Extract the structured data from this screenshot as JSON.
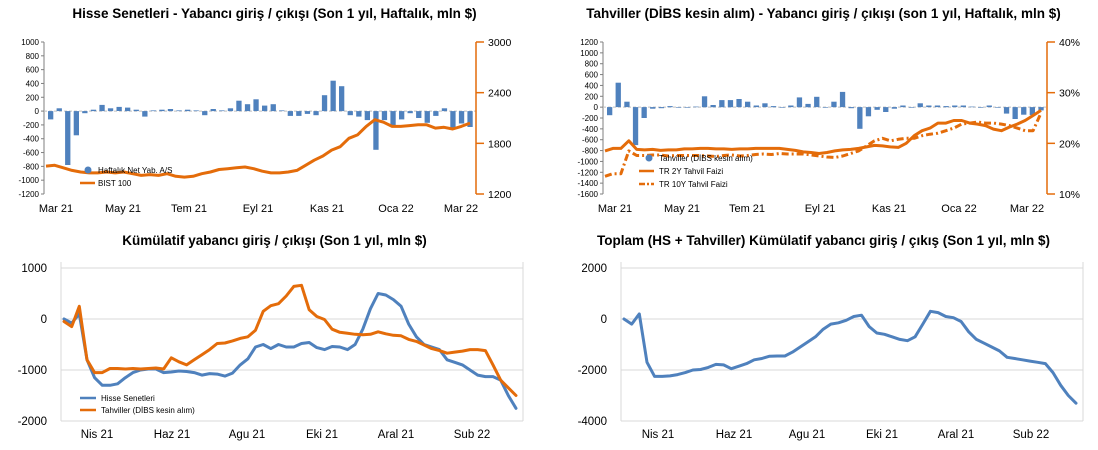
{
  "colors": {
    "blue": "#4f81bd",
    "orange": "#e46c0a",
    "axis": "#7f7f7f",
    "grid": "#d9d9d9"
  },
  "chart_data": [
    {
      "type": "bar+line",
      "title": "Hisse Senetleri - Yabancı giriş / çıkışı (Son 1 yıl, Haftalık, mln $)",
      "x_ticks": [
        "Mar 21",
        "May 21",
        "Tem 21",
        "Eyl 21",
        "Kas 21",
        "Oca 22",
        "Mar 22"
      ],
      "y_left_ticks": [
        "1000",
        "800",
        "600",
        "400",
        "200",
        "0",
        "-200",
        "-400",
        "-600",
        "-800",
        "-1000",
        "-1200"
      ],
      "y_left_range": [
        -1200,
        1000
      ],
      "y_right_ticks": [
        "3000",
        "2400",
        "1800",
        "1200"
      ],
      "y_right_range": [
        1200,
        3000
      ],
      "legend": [
        "Haftalık Net Yab. A/S",
        "BIST 100"
      ],
      "bars": [
        -120,
        40,
        -780,
        -350,
        -30,
        20,
        90,
        40,
        60,
        50,
        20,
        -80,
        10,
        20,
        30,
        10,
        20,
        10,
        -60,
        30,
        10,
        40,
        150,
        100,
        170,
        80,
        100,
        10,
        -70,
        -70,
        -40,
        -60,
        230,
        440,
        360,
        -60,
        -80,
        -130,
        -560,
        -130,
        -220,
        -120,
        -30,
        -100,
        -170,
        -70,
        40,
        -260,
        -180,
        -230
      ],
      "bist100": [
        1530,
        1540,
        1510,
        1480,
        1460,
        1450,
        1450,
        1460,
        1450,
        1460,
        1440,
        1420,
        1430,
        1420,
        1440,
        1410,
        1400,
        1410,
        1440,
        1460,
        1490,
        1500,
        1510,
        1520,
        1500,
        1470,
        1450,
        1450,
        1460,
        1480,
        1540,
        1600,
        1650,
        1720,
        1760,
        1860,
        1900,
        2000,
        2080,
        2050,
        2000,
        2000,
        2010,
        2020,
        2020,
        1980,
        1990,
        1970,
        2000,
        2040
      ]
    },
    {
      "type": "bar+line",
      "title": "Tahviller (DİBS kesin alım) - Yabancı giriş / çıkışı (son 1 yıl, Haftalık, mln $)",
      "x_ticks": [
        "Mar 21",
        "May 21",
        "Tem 21",
        "Eyl 21",
        "Kas 21",
        "Oca 22",
        "Mar 22"
      ],
      "y_left_ticks": [
        "1200",
        "1000",
        "800",
        "600",
        "400",
        "200",
        "0",
        "-200",
        "-400",
        "-600",
        "-800",
        "-1000",
        "-1200",
        "-1400",
        "-1600"
      ],
      "y_left_range": [
        -1600,
        1200
      ],
      "y_right_ticks": [
        "40%",
        "30%",
        "20%",
        "10%"
      ],
      "y_right_range": [
        10,
        40
      ],
      "legend": [
        "Tahviller (DİBS kesin alım)",
        "TR 2Y Tahvil Faizi",
        "TR 10Y Tahvil Faizi"
      ],
      "bars": [
        -150,
        450,
        100,
        -700,
        -200,
        -30,
        -20,
        20,
        -10,
        0,
        10,
        200,
        40,
        130,
        130,
        150,
        100,
        30,
        70,
        20,
        0,
        30,
        180,
        60,
        190,
        0,
        100,
        280,
        -20,
        -400,
        -170,
        -50,
        -90,
        -30,
        30,
        0,
        70,
        30,
        30,
        20,
        30,
        30,
        10,
        0,
        30,
        -10,
        -120,
        -220,
        -140,
        -150,
        -60
      ],
      "tr2y": [
        18.5,
        19,
        19,
        20.5,
        18.8,
        18.7,
        18.8,
        18.6,
        18.7,
        18.7,
        18.9,
        18.9,
        19,
        19,
        18.9,
        18.9,
        18.8,
        18.9,
        18.9,
        19,
        19,
        19,
        19,
        18.8,
        18.6,
        18.3,
        18.2,
        18,
        18.2,
        18.5,
        18.7,
        18.8,
        19,
        19.3,
        19.6,
        19.5,
        19.3,
        19.2,
        20,
        21.5,
        22.5,
        23,
        24,
        24,
        24.5,
        24.5,
        24,
        23.8,
        23.5,
        22.8,
        22.5,
        23.2,
        23.8,
        24.5,
        25.5,
        26.5
      ],
      "tr10y": [
        13.5,
        14,
        14,
        18.5,
        17.6,
        17.6,
        17.7,
        17.7,
        17.5,
        17.6,
        17.6,
        17.6,
        17.6,
        17.5,
        17.4,
        17.6,
        17.7,
        17.5,
        17.6,
        17.8,
        17.9,
        17.8,
        18,
        17.9,
        17.9,
        17.9,
        17.7,
        17.5,
        17.3,
        17.2,
        17.5,
        18,
        18.5,
        19.5,
        20.5,
        21,
        20.5,
        20.8,
        21,
        21,
        21.5,
        21.8,
        22,
        22.5,
        23,
        23.8,
        24,
        24.2,
        24,
        24,
        23.8,
        23.5,
        23,
        22.5,
        22.5,
        26
      ]
    },
    {
      "type": "line",
      "title": "Kümülatif yabancı giriş / çıkışı (Son 1 yıl, mln $)",
      "x_ticks": [
        "Nis 21",
        "Haz 21",
        "Agu 21",
        "Eki 21",
        "Aral 21",
        "Sub 22"
      ],
      "y_ticks": [
        "1000",
        "0",
        "-1000",
        "-2000"
      ],
      "ylim": [
        -2000,
        1000
      ],
      "series": [
        {
          "name": "Hisse Senetleri",
          "values": [
            0,
            -80,
            100,
            -800,
            -1150,
            -1300,
            -1300,
            -1270,
            -1150,
            -1050,
            -1000,
            -980,
            -980,
            -1050,
            -1040,
            -1020,
            -1030,
            -1050,
            -1100,
            -1070,
            -1080,
            -1120,
            -1060,
            -900,
            -780,
            -550,
            -500,
            -580,
            -500,
            -550,
            -550,
            -480,
            -460,
            -560,
            -600,
            -540,
            -550,
            -600,
            -500,
            -200,
            200,
            500,
            470,
            380,
            250,
            -100,
            -350,
            -500,
            -550,
            -600,
            -800,
            -850,
            -900,
            -1000,
            -1100,
            -1130,
            -1130,
            -1200,
            -1500,
            -1750
          ]
        },
        {
          "name": "Tahviller (DİBS kesin alım)",
          "values": [
            -50,
            -150,
            250,
            -800,
            -1050,
            -1050,
            -970,
            -970,
            -980,
            -970,
            -980,
            -970,
            -960,
            -980,
            -760,
            -840,
            -900,
            -800,
            -700,
            -600,
            -480,
            -470,
            -430,
            -380,
            -350,
            -220,
            150,
            260,
            300,
            450,
            640,
            660,
            180,
            50,
            -10,
            -200,
            -260,
            -280,
            -300,
            -310,
            -300,
            -250,
            -290,
            -320,
            -330,
            -400,
            -440,
            -510,
            -580,
            -620,
            -670,
            -650,
            -630,
            -600,
            -600,
            -620,
            -900,
            -1200,
            -1350,
            -1500
          ]
        }
      ]
    },
    {
      "type": "line",
      "title": "Toplam (HS + Tahviller) Kümülatif yabancı giriş / çıkış (Son 1 yıl, mln $)",
      "x_ticks": [
        "Nis 21",
        "Haz 21",
        "Agu 21",
        "Eki 21",
        "Aral 21",
        "Sub 22"
      ],
      "y_ticks": [
        "2000",
        "0",
        "-2000",
        "-4000"
      ],
      "ylim": [
        -4000,
        2000
      ],
      "series": [
        {
          "name": "",
          "values": [
            0,
            -200,
            200,
            -1700,
            -2250,
            -2250,
            -2230,
            -2180,
            -2100,
            -2000,
            -1980,
            -1900,
            -1780,
            -1800,
            -1950,
            -1850,
            -1750,
            -1600,
            -1550,
            -1460,
            -1450,
            -1450,
            -1300,
            -1100,
            -900,
            -700,
            -400,
            -200,
            -150,
            -50,
            100,
            150,
            -300,
            -550,
            -600,
            -700,
            -800,
            -850,
            -700,
            -200,
            300,
            250,
            100,
            50,
            -100,
            -500,
            -800,
            -950,
            -1100,
            -1250,
            -1500,
            -1550,
            -1600,
            -1650,
            -1700,
            -1750,
            -2100,
            -2600,
            -3000,
            -3300
          ]
        }
      ]
    }
  ]
}
